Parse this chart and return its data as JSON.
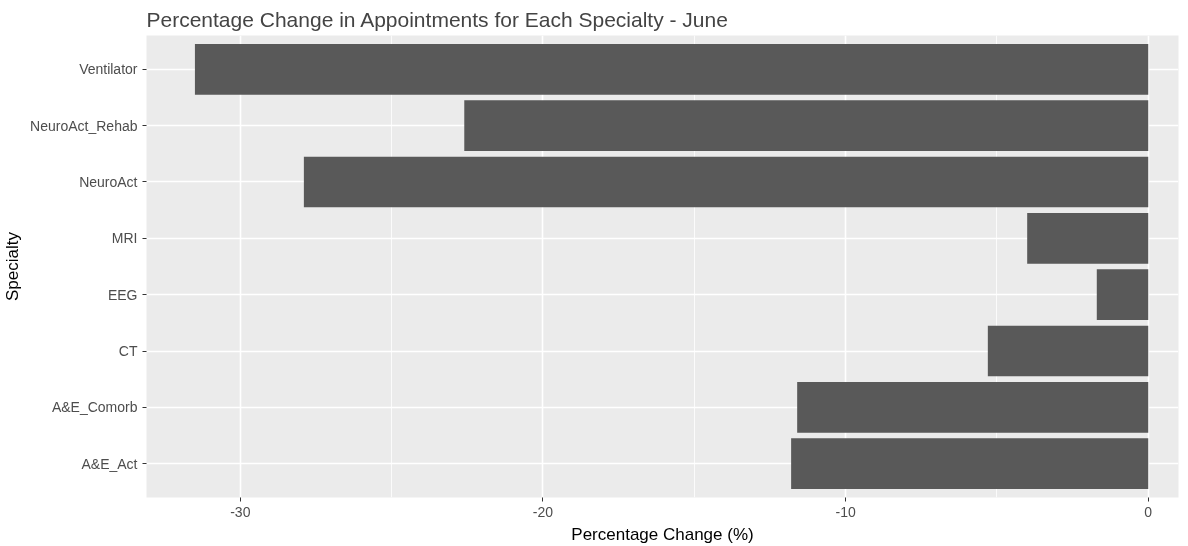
{
  "chart_data": {
    "type": "bar",
    "orientation": "horizontal",
    "title": "Percentage Change in Appointments for Each Specialty - June",
    "xlabel": "Percentage Change (%)",
    "ylabel": "Specialty",
    "categories": [
      "Ventilator",
      "NeuroAct_Rehab",
      "NeuroAct",
      "MRI",
      "EEG",
      "CT",
      "A&E_Comorb",
      "A&E_Act"
    ],
    "values": [
      -31.5,
      -22.6,
      -27.9,
      -4.0,
      -1.7,
      -5.3,
      -11.6,
      -11.8
    ],
    "color": "#595959",
    "xlim": [
      -33.1,
      1.0
    ],
    "xticks": [
      -30,
      -20,
      -10,
      0
    ],
    "grid": true
  }
}
